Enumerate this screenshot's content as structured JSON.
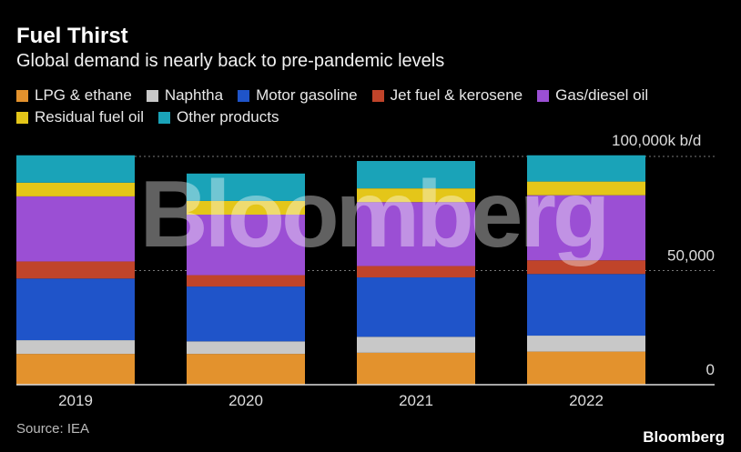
{
  "header": {
    "title": "Fuel Thirst",
    "subtitle": "Global demand is nearly back to pre-pandemic levels"
  },
  "source": "Source: IEA",
  "logo_text": "Bloomberg",
  "watermark_text": "Bloomberg",
  "chart_data": {
    "type": "bar",
    "stacked": true,
    "categories": [
      "2019",
      "2020",
      "2021",
      "2022"
    ],
    "series": [
      {
        "name": "LPG & ethane",
        "color": "#e3922d",
        "values": [
          13500,
          13500,
          14000,
          14500
        ]
      },
      {
        "name": "Naphtha",
        "color": "#c8c8c8",
        "values": [
          6000,
          5500,
          7000,
          7000
        ]
      },
      {
        "name": "Motor gasoline",
        "color": "#1f54c9",
        "values": [
          27000,
          24000,
          26000,
          27000
        ]
      },
      {
        "name": "Jet fuel & kerosene",
        "color": "#c0442a",
        "values": [
          7500,
          5000,
          5000,
          6000
        ]
      },
      {
        "name": "Gas/diesel oil",
        "color": "#9b4fd4",
        "values": [
          28500,
          26500,
          28000,
          28500
        ]
      },
      {
        "name": "Residual fuel oil",
        "color": "#e4c619",
        "values": [
          6000,
          6000,
          6000,
          6000
        ]
      },
      {
        "name": "Other products",
        "color": "#1aa3b8",
        "values": [
          12000,
          12000,
          12000,
          11500
        ]
      }
    ],
    "y_ticks": [
      {
        "value": 0,
        "label": "0"
      },
      {
        "value": 50000,
        "label": "50,000"
      },
      {
        "value": 100000,
        "label": "100,000"
      }
    ],
    "unit_label": "100,000k b/d",
    "ylim": [
      0,
      100000
    ],
    "xlabel": "",
    "ylabel": "",
    "grid": true,
    "legend_position": "top-left",
    "colors": {
      "background": "#000000",
      "gridline": "#777777",
      "axis": "#dddddd",
      "tick_text": "#dddddd"
    }
  }
}
